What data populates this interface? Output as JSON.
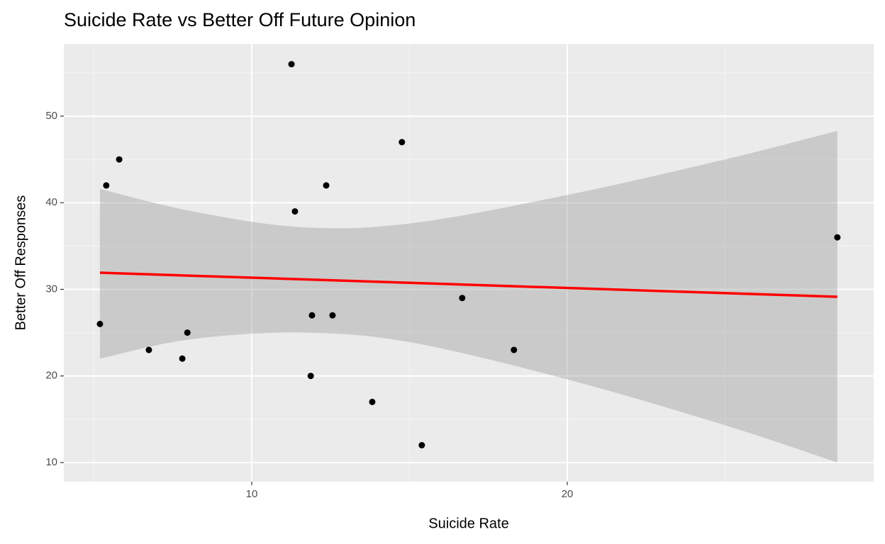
{
  "chart_data": {
    "type": "scatter",
    "title": "Suicide Rate vs Better Off Future Opinion",
    "xlabel": "Suicide Rate",
    "ylabel": "Better Off Responses",
    "x": [
      5.19,
      5.39,
      5.8,
      6.74,
      7.8,
      7.96,
      11.26,
      11.37,
      11.87,
      11.91,
      12.36,
      12.56,
      13.82,
      14.76,
      15.39,
      16.67,
      18.31,
      28.56
    ],
    "y": [
      26,
      42,
      45,
      23,
      22,
      25,
      56,
      39,
      20,
      27,
      42,
      27,
      17,
      47,
      12,
      29,
      23,
      36
    ],
    "color": "#000000",
    "fit": {
      "color": "#ff0000",
      "x": [
        5.19,
        28.56
      ],
      "y": [
        31.92,
        29.14
      ]
    },
    "band": {
      "color": "#999999",
      "x": [
        5.19,
        8,
        11.5,
        15,
        20,
        25,
        28.56
      ],
      "upper": [
        41.6,
        39.1,
        37.2,
        37.6,
        40.9,
        45.0,
        48.3
      ],
      "lower": [
        22.0,
        24.2,
        25.0,
        23.9,
        19.6,
        14.3,
        10.0
      ]
    },
    "xlim": [
      4.045,
      29.71
    ],
    "ylim": [
      7.79,
      58.34
    ],
    "xticks": [
      10,
      20
    ],
    "yticks": [
      10,
      20,
      30,
      40,
      50
    ],
    "xminor": [
      5,
      15,
      25
    ],
    "yminor": [
      15,
      25,
      35,
      45,
      55
    ],
    "grid": true
  }
}
